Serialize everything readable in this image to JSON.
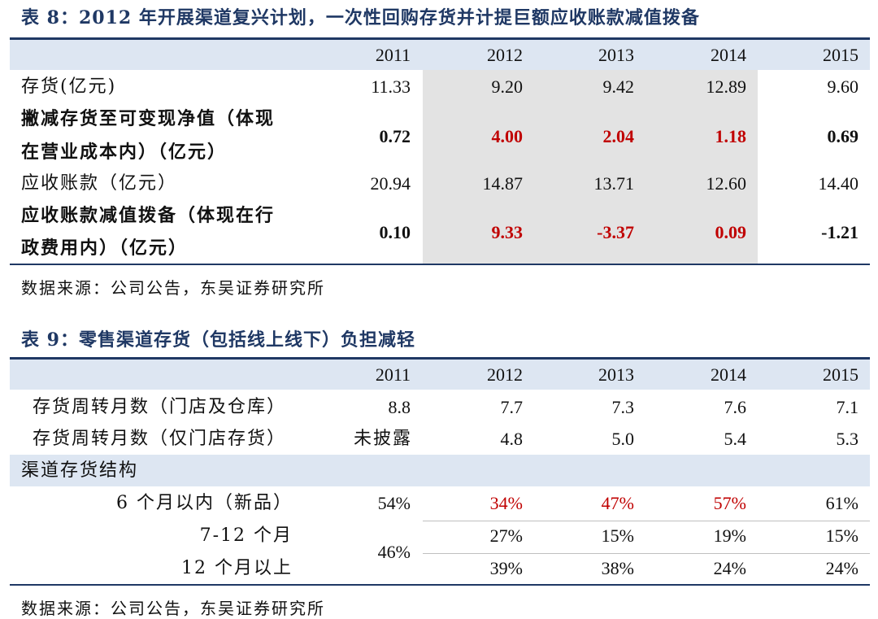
{
  "table8": {
    "title": "表 8：2012 年开展渠道复兴计划，一次性回购存货并计提巨额应收账款减值拨备",
    "years": [
      "2011",
      "2012",
      "2013",
      "2014",
      "2015"
    ],
    "rows": [
      {
        "label_lines": [
          "存货(亿元)"
        ],
        "values": [
          "11.33",
          "9.20",
          "9.42",
          "12.89",
          "9.60"
        ],
        "bold": false
      },
      {
        "label_lines": [
          "撇减存货至可变现净值（体现",
          "在营业成本内）（亿元）"
        ],
        "values": [
          "0.72",
          "4.00",
          "2.04",
          "1.18",
          "0.69"
        ],
        "bold": true
      },
      {
        "label_lines": [
          "应收账款（亿元）"
        ],
        "values": [
          "20.94",
          "14.87",
          "13.71",
          "12.60",
          "14.40"
        ],
        "bold": false
      },
      {
        "label_lines": [
          "应收账款减值拨备（体现在行",
          "政费用内）（亿元）"
        ],
        "values": [
          "0.10",
          "9.33",
          "-3.37",
          "0.09",
          "-1.21"
        ],
        "bold": true
      }
    ],
    "source": "数据来源：公司公告，东吴证券研究所"
  },
  "table9": {
    "title": "表 9：零售渠道存货（包括线上线下）负担减轻",
    "years": [
      "2011",
      "2012",
      "2013",
      "2014",
      "2015"
    ],
    "rows": [
      {
        "label": "存货周转月数（门店及仓库）",
        "values": [
          "8.8",
          "7.7",
          "7.3",
          "7.6",
          "7.1"
        ]
      },
      {
        "label": "存货周转月数（仅门店存货）",
        "values": [
          "未披露",
          "4.8",
          "5.0",
          "5.4",
          "5.3"
        ]
      }
    ],
    "section_label": "渠道存货结构",
    "structure": [
      {
        "label": "6 个月以内（新品）",
        "values": [
          "54%",
          "34%",
          "47%",
          "57%",
          "61%"
        ]
      },
      {
        "label": "7-12 个月",
        "values": [
          "",
          "27%",
          "15%",
          "19%",
          "15%"
        ]
      },
      {
        "label": "12 个月以上",
        "values": [
          "",
          "39%",
          "38%",
          "24%",
          "24%"
        ]
      }
    ],
    "merged_2011": "46%",
    "source": "数据来源：公司公告，东吴证券研究所"
  },
  "colors": {
    "title": "#1f3864",
    "header_band": "#dde6f2",
    "highlight_col": "#e3e3e3",
    "red": "#c00000"
  }
}
